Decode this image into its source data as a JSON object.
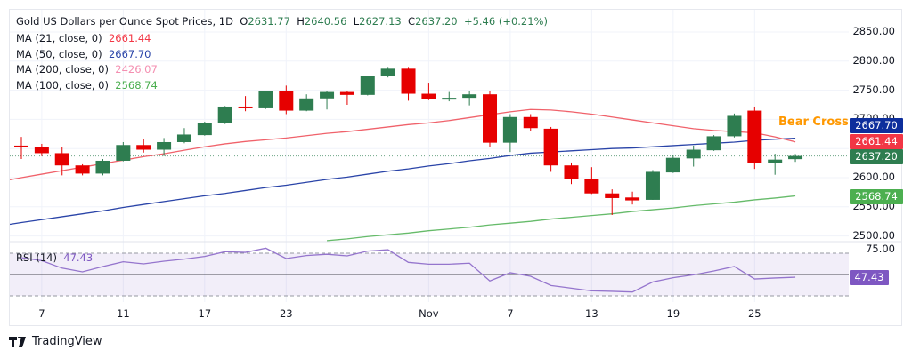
{
  "header": {
    "title": "Gold US Dollars per Ounce Spot Prices, 1D",
    "open_label": "O",
    "open": "2631.77",
    "high_label": "H",
    "high": "2640.56",
    "low_label": "L",
    "low": "2627.13",
    "close_label": "C",
    "close": "2637.20",
    "change": "+5.46 (+0.21%)"
  },
  "indicators": [
    {
      "label": "MA (21, close, 0)",
      "value": "2661.44",
      "color": "#f23645"
    },
    {
      "label": "MA (50, close, 0)",
      "value": "2667.70",
      "color": "#2a44a8"
    },
    {
      "label": "MA (200, close, 0)",
      "value": "2426.07",
      "color": "#f48fb1"
    },
    {
      "label": "MA (100, close, 0)",
      "value": "2568.74",
      "color": "#4caf50"
    }
  ],
  "rsi": {
    "label": "RSI (14)",
    "value": "47.43",
    "axis_label": "75.00",
    "tag": "47.43"
  },
  "annotation": "Bear Cross",
  "price_tags": {
    "ma50": "2667.70",
    "ma21": "2661.44",
    "last": "2637.20",
    "ma100": "2568.74"
  },
  "colors": {
    "up": "#2e7d50",
    "down": "#e60000",
    "ma21": "#f0626b",
    "ma50": "#2a44a8",
    "ma100": "#66bb6a",
    "rsi": "#9575cd",
    "tag_ma50": "#0d2e9c",
    "tag_ma21": "#f23645",
    "tag_last": "#2e7d50",
    "tag_ma100": "#4caf50",
    "tag_rsi": "#7e57c2",
    "accent": "#ff9800"
  },
  "branding": "TradingView",
  "chart_data": {
    "type": "candlestick",
    "title": "Gold US Dollars per Ounce Spot Prices, 1D",
    "y_ticks": [
      "2850.00",
      "2800.00",
      "2750.00",
      "2700.00",
      "2600.00",
      "2550.00",
      "2500.00"
    ],
    "ylim": [
      2495,
      2865
    ],
    "x_ticks": [
      {
        "i": 1,
        "label": "7"
      },
      {
        "i": 5,
        "label": "11"
      },
      {
        "i": 9,
        "label": "17"
      },
      {
        "i": 13,
        "label": "23"
      },
      {
        "i": 20,
        "label": "Nov"
      },
      {
        "i": 24,
        "label": "7"
      },
      {
        "i": 28,
        "label": "13"
      },
      {
        "i": 32,
        "label": "19"
      },
      {
        "i": 36,
        "label": "25"
      }
    ],
    "ohlc": [
      [
        2655,
        2670,
        2632,
        2653
      ],
      [
        2652,
        2658,
        2637,
        2642
      ],
      [
        2642,
        2653,
        2604,
        2621
      ],
      [
        2621,
        2623,
        2604,
        2607
      ],
      [
        2607,
        2632,
        2604,
        2629
      ],
      [
        2629,
        2661,
        2628,
        2656
      ],
      [
        2656,
        2667,
        2643,
        2648
      ],
      [
        2648,
        2668,
        2637,
        2661
      ],
      [
        2661,
        2685,
        2659,
        2674
      ],
      [
        2673,
        2696,
        2672,
        2693
      ],
      [
        2693,
        2723,
        2692,
        2722
      ],
      [
        2722,
        2740,
        2714,
        2719
      ],
      [
        2719,
        2749,
        2718,
        2749
      ],
      [
        2749,
        2758,
        2709,
        2715
      ],
      [
        2715,
        2743,
        2714,
        2736
      ],
      [
        2736,
        2749,
        2717,
        2747
      ],
      [
        2747,
        2748,
        2725,
        2742
      ],
      [
        2742,
        2775,
        2741,
        2774
      ],
      [
        2774,
        2790,
        2772,
        2787
      ],
      [
        2787,
        2790,
        2732,
        2744
      ],
      [
        2744,
        2763,
        2733,
        2735
      ],
      [
        2736,
        2747,
        2731,
        2737
      ],
      [
        2737,
        2749,
        2724,
        2743
      ],
      [
        2743,
        2749,
        2652,
        2660
      ],
      [
        2660,
        2709,
        2644,
        2704
      ],
      [
        2704,
        2709,
        2680,
        2685
      ],
      [
        2684,
        2687,
        2610,
        2621
      ],
      [
        2621,
        2626,
        2589,
        2598
      ],
      [
        2598,
        2618,
        2572,
        2573
      ],
      [
        2573,
        2580,
        2536,
        2565
      ],
      [
        2566,
        2576,
        2554,
        2561
      ],
      [
        2562,
        2613,
        2562,
        2610
      ],
      [
        2609,
        2639,
        2608,
        2634
      ],
      [
        2633,
        2655,
        2619,
        2648
      ],
      [
        2647,
        2673,
        2646,
        2671
      ],
      [
        2671,
        2710,
        2669,
        2706
      ],
      [
        2715,
        2722,
        2615,
        2625
      ],
      [
        2625,
        2641,
        2605,
        2631
      ],
      [
        2631.77,
        2640.56,
        2627.13,
        2637.2
      ]
    ],
    "ma21": [
      2600,
      2606,
      2612,
      2618,
      2624,
      2630,
      2636,
      2641,
      2647,
      2653,
      2658,
      2662,
      2665,
      2668,
      2672,
      2676,
      2679,
      2683,
      2687,
      2691,
      2694,
      2698,
      2703,
      2708,
      2713,
      2717,
      2716,
      2713,
      2709,
      2704,
      2699,
      2694,
      2689,
      2684,
      2681,
      2679,
      2677,
      2670,
      2661.44
    ],
    "ma50": [
      2523,
      2528,
      2533,
      2538,
      2543,
      2549,
      2554,
      2559,
      2564,
      2569,
      2573,
      2578,
      2583,
      2587,
      2592,
      2597,
      2601,
      2606,
      2611,
      2615,
      2620,
      2624,
      2629,
      2633,
      2638,
      2642,
      2644,
      2646,
      2648,
      2650,
      2651,
      2653,
      2655,
      2657,
      2659,
      2661,
      2664,
      2666,
      2667.7
    ],
    "ma100": [
      null,
      null,
      null,
      null,
      null,
      null,
      null,
      null,
      null,
      null,
      null,
      null,
      null,
      null,
      null,
      2492,
      2495,
      2499,
      2502,
      2505,
      2509,
      2512,
      2515,
      2519,
      2522,
      2525,
      2529,
      2532,
      2535,
      2538,
      2542,
      2545,
      2548,
      2552,
      2555,
      2558,
      2562,
      2565,
      2568.74
    ],
    "rsi14": [
      65.8,
      63,
      56,
      52.5,
      57.5,
      62,
      60,
      62.5,
      64.5,
      67,
      71.4,
      70.8,
      74.7,
      65,
      67.8,
      69,
      67.5,
      72,
      73.3,
      61.4,
      59.7,
      59.7,
      60.6,
      44,
      51.7,
      48.3,
      39.7,
      37.2,
      34.7,
      34.2,
      33.6,
      43,
      47,
      49.7,
      53.3,
      57.5,
      45.8,
      46.7,
      47.43
    ],
    "rsi_bands": [
      30,
      50,
      70
    ],
    "last_price": 2637.2
  }
}
